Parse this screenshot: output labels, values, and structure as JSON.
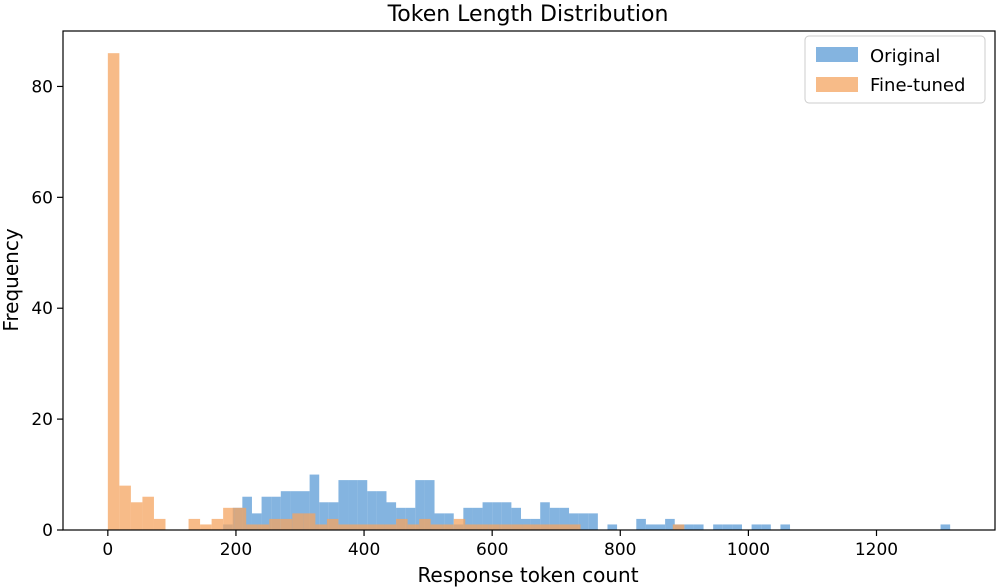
{
  "chart_data": {
    "type": "bar",
    "title": "Token Length Distribution",
    "xlabel": "Response token count",
    "ylabel": "Frequency",
    "xlim": [
      -70,
      1385
    ],
    "ylim": [
      0,
      90
    ],
    "xticks": [
      0,
      200,
      400,
      600,
      800,
      1000,
      1200
    ],
    "yticks": [
      0,
      20,
      40,
      60,
      80
    ],
    "legend_placement": "top-right",
    "grid": false,
    "series": [
      {
        "name": "Original",
        "color": "#5b9bd5",
        "opacity": 0.75,
        "bins": [
          [
            180,
            195,
            1
          ],
          [
            195,
            210,
            4
          ],
          [
            210,
            225,
            6
          ],
          [
            225,
            240,
            3
          ],
          [
            240,
            255,
            6
          ],
          [
            255,
            270,
            6
          ],
          [
            270,
            285,
            7
          ],
          [
            285,
            300,
            7
          ],
          [
            300,
            315,
            7
          ],
          [
            315,
            330,
            10
          ],
          [
            330,
            345,
            5
          ],
          [
            345,
            360,
            5
          ],
          [
            360,
            375,
            9
          ],
          [
            375,
            390,
            9
          ],
          [
            390,
            405,
            9
          ],
          [
            405,
            420,
            7
          ],
          [
            420,
            435,
            7
          ],
          [
            435,
            450,
            5
          ],
          [
            450,
            465,
            4
          ],
          [
            465,
            480,
            4
          ],
          [
            480,
            495,
            9
          ],
          [
            495,
            510,
            9
          ],
          [
            510,
            525,
            3
          ],
          [
            525,
            540,
            3
          ],
          [
            540,
            555,
            1
          ],
          [
            555,
            570,
            4
          ],
          [
            570,
            585,
            4
          ],
          [
            585,
            600,
            5
          ],
          [
            600,
            615,
            5
          ],
          [
            615,
            630,
            5
          ],
          [
            630,
            645,
            4
          ],
          [
            645,
            660,
            2
          ],
          [
            660,
            675,
            2
          ],
          [
            675,
            690,
            5
          ],
          [
            690,
            705,
            4
          ],
          [
            705,
            720,
            4
          ],
          [
            720,
            735,
            3
          ],
          [
            735,
            750,
            3
          ],
          [
            750,
            765,
            3
          ],
          [
            780,
            795,
            1
          ],
          [
            825,
            840,
            2
          ],
          [
            840,
            855,
            1
          ],
          [
            855,
            870,
            1
          ],
          [
            870,
            885,
            2
          ],
          [
            885,
            900,
            1
          ],
          [
            900,
            915,
            1
          ],
          [
            915,
            930,
            1
          ],
          [
            945,
            960,
            1
          ],
          [
            960,
            975,
            1
          ],
          [
            975,
            990,
            1
          ],
          [
            1005,
            1020,
            1
          ],
          [
            1020,
            1035,
            1
          ],
          [
            1050,
            1065,
            1
          ],
          [
            1300,
            1315,
            1
          ]
        ]
      },
      {
        "name": "Fine-tuned",
        "color": "#f4a460",
        "opacity": 0.75,
        "bins": [
          [
            0,
            18,
            86
          ],
          [
            18,
            36,
            8
          ],
          [
            36,
            54,
            5
          ],
          [
            54,
            72,
            6
          ],
          [
            72,
            90,
            2
          ],
          [
            126,
            144,
            2
          ],
          [
            144,
            162,
            1
          ],
          [
            162,
            180,
            2
          ],
          [
            180,
            198,
            4
          ],
          [
            198,
            216,
            4
          ],
          [
            216,
            234,
            1
          ],
          [
            234,
            252,
            1
          ],
          [
            252,
            270,
            2
          ],
          [
            270,
            288,
            2
          ],
          [
            288,
            306,
            3
          ],
          [
            306,
            324,
            3
          ],
          [
            324,
            342,
            1
          ],
          [
            342,
            360,
            2
          ],
          [
            360,
            378,
            1
          ],
          [
            378,
            396,
            1
          ],
          [
            396,
            414,
            1
          ],
          [
            414,
            432,
            1
          ],
          [
            432,
            450,
            1
          ],
          [
            450,
            468,
            2
          ],
          [
            468,
            486,
            1
          ],
          [
            486,
            504,
            2
          ],
          [
            504,
            522,
            1
          ],
          [
            522,
            540,
            1
          ],
          [
            540,
            558,
            2
          ],
          [
            558,
            576,
            1
          ],
          [
            576,
            594,
            1
          ],
          [
            594,
            612,
            1
          ],
          [
            612,
            630,
            1
          ],
          [
            630,
            648,
            1
          ],
          [
            648,
            666,
            1
          ],
          [
            666,
            684,
            1
          ],
          [
            684,
            702,
            1
          ],
          [
            702,
            720,
            1
          ],
          [
            720,
            738,
            1
          ],
          [
            882,
            900,
            1
          ]
        ]
      }
    ]
  }
}
